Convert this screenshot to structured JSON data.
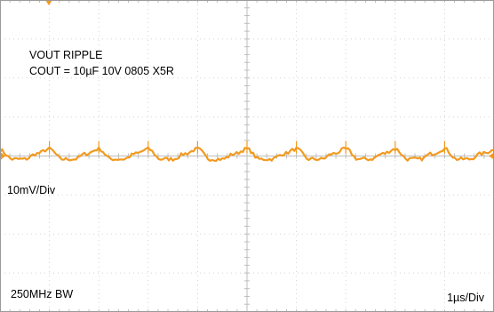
{
  "annotations": {
    "title_line1": "VOUT RIPPLE",
    "title_line2": "COUT = 10µF 10V 0805 X5R",
    "vertical_scale": "10mV/Div",
    "bandwidth": "250MHz BW",
    "time_scale": "1µs/Div"
  },
  "colors": {
    "trace": "#f29a1f",
    "grid": "#d2d2d2",
    "axis": "#bdbdbd",
    "frame": "#9a9a9a"
  },
  "chart_data": {
    "type": "line",
    "title": "VOUT RIPPLE",
    "subtitle": "COUT = 10µF 10V 0805 X5R",
    "grid": true,
    "divisions": {
      "horizontal": 10,
      "vertical": 8
    },
    "xlim": [
      0,
      10
    ],
    "ylim": [
      -40,
      40
    ],
    "x_scale_per_div": "1µs/Div",
    "y_scale_per_div": "10mV/Div",
    "series": [
      {
        "x": [
          0,
          0.25,
          0.5,
          0.75,
          1.0,
          1.25,
          1.5,
          1.75,
          2.0,
          2.25,
          2.5,
          2.75,
          3.0,
          3.25,
          3.5,
          3.75,
          4.0,
          4.25,
          4.5,
          4.75,
          5.0,
          5.25,
          5.5,
          5.75,
          6.0,
          6.25,
          6.5,
          6.75,
          7.0,
          7.25,
          7.5,
          7.75,
          8.0,
          8.25,
          8.5,
          8.75,
          9.0,
          9.25,
          9.5,
          9.75,
          10.0
        ],
        "y": [
          1.5,
          -0.8,
          -0.8,
          0.6,
          1.8,
          -0.8,
          -0.8,
          0.6,
          1.8,
          -0.8,
          -0.8,
          0.6,
          1.8,
          -0.8,
          -0.8,
          0.6,
          1.8,
          -0.8,
          -0.8,
          0.6,
          1.8,
          -0.8,
          -0.8,
          0.6,
          1.8,
          -0.8,
          -0.8,
          0.6,
          1.8,
          -0.8,
          -0.8,
          0.6,
          1.8,
          -0.8,
          -0.8,
          0.6,
          1.8,
          -0.8,
          -0.8,
          0.6,
          1.5
        ]
      }
    ]
  }
}
